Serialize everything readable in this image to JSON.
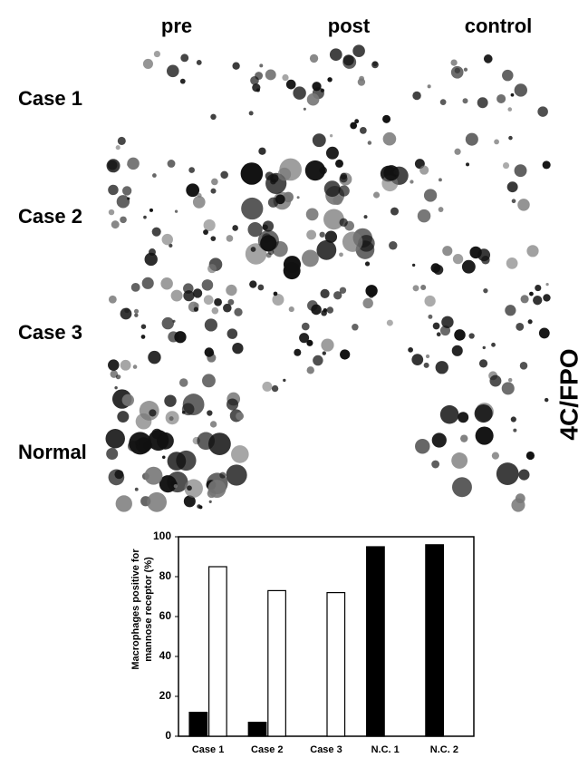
{
  "figure": {
    "columns": [
      "pre",
      "post",
      "control"
    ],
    "rows": [
      "Case 1",
      "Case 2",
      "Case 3",
      "Normal"
    ],
    "side_label": "4C/FPO"
  },
  "chart_data": {
    "type": "bar",
    "y_label": [
      "Macrophages positive for",
      "mannose receptor (%)"
    ],
    "categories": [
      "Case 1",
      "Case 2",
      "Case 3",
      "N.C. 1",
      "N.C. 2"
    ],
    "series": [
      {
        "color": "#000000",
        "values": [
          12,
          7,
          null,
          95,
          96
        ]
      },
      {
        "color": "#ffffff",
        "values": [
          85,
          73,
          72,
          null,
          null
        ]
      }
    ],
    "ylim": [
      0,
      100
    ],
    "yticks": [
      0,
      20,
      40,
      60,
      80,
      100
    ],
    "grid": false
  }
}
